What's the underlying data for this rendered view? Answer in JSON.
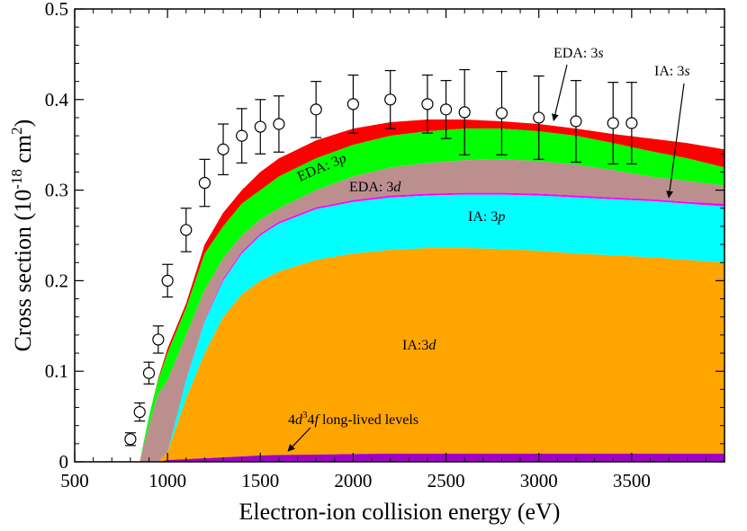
{
  "chart_data": {
    "type": "area",
    "xlabel": "Electron-ion collision energy (eV)",
    "ylabel": {
      "prefix": "Cross section (10",
      "exp": "-18",
      "mid": " cm",
      "exp2": "2",
      "suffix": ")"
    },
    "xlim": [
      500,
      4000
    ],
    "ylim": [
      0,
      0.5
    ],
    "x_ticks": [
      "500",
      "1000",
      "1500",
      "2000",
      "2500",
      "3000",
      "3500"
    ],
    "y_ticks": [
      "0",
      "0.1",
      "0.2",
      "0.3",
      "0.4",
      "0.5"
    ],
    "colors": {
      "long_lived": "#a000c8",
      "ia_3d": "#ffa500",
      "ia_3p": "#00ffff",
      "ia_3s": "#ff00ff",
      "eda_3d": "#bc8f8f",
      "eda_3p": "#00ff00",
      "eda_3s": "#ff0000"
    },
    "x": [
      850,
      900,
      950,
      1000,
      1100,
      1200,
      1300,
      1400,
      1500,
      1600,
      1800,
      2000,
      2200,
      2400,
      2600,
      2800,
      3000,
      3200,
      3400,
      3600,
      3800,
      4000
    ],
    "stack_tops": {
      "long_lived": [
        0,
        0,
        0,
        0.002,
        0.003,
        0.004,
        0.005,
        0.006,
        0.007,
        0.0075,
        0.008,
        0.0085,
        0.009,
        0.009,
        0.009,
        0.009,
        0.009,
        0.009,
        0.009,
        0.009,
        0.009,
        0.009
      ],
      "ia_3d": [
        0,
        0,
        0,
        0.01,
        0.07,
        0.12,
        0.16,
        0.185,
        0.2,
        0.21,
        0.223,
        0.23,
        0.234,
        0.236,
        0.236,
        0.235,
        0.233,
        0.23,
        0.228,
        0.226,
        0.223,
        0.22
      ],
      "ia_3p": [
        0,
        0,
        0,
        0.01,
        0.09,
        0.155,
        0.2,
        0.23,
        0.25,
        0.263,
        0.279,
        0.287,
        0.292,
        0.294,
        0.295,
        0.295,
        0.294,
        0.292,
        0.29,
        0.288,
        0.285,
        0.282
      ],
      "ia_3s": [
        0,
        0,
        0,
        0.01,
        0.09,
        0.156,
        0.202,
        0.232,
        0.252,
        0.265,
        0.281,
        0.289,
        0.294,
        0.296,
        0.297,
        0.297,
        0.296,
        0.294,
        0.292,
        0.29,
        0.287,
        0.285
      ],
      "eda_3d": [
        0,
        0.04,
        0.075,
        0.09,
        0.14,
        0.19,
        0.225,
        0.25,
        0.268,
        0.28,
        0.3,
        0.315,
        0.325,
        0.33,
        0.333,
        0.334,
        0.332,
        0.328,
        0.322,
        0.315,
        0.31,
        0.305
      ],
      "eda_3p": [
        0,
        0.05,
        0.09,
        0.12,
        0.17,
        0.23,
        0.26,
        0.285,
        0.3,
        0.315,
        0.335,
        0.35,
        0.36,
        0.365,
        0.368,
        0.368,
        0.365,
        0.36,
        0.352,
        0.343,
        0.335,
        0.325
      ],
      "eda_3s": [
        0,
        0.05,
        0.092,
        0.125,
        0.175,
        0.24,
        0.275,
        0.3,
        0.32,
        0.335,
        0.355,
        0.368,
        0.375,
        0.378,
        0.378,
        0.376,
        0.373,
        0.368,
        0.362,
        0.357,
        0.352,
        0.345
      ]
    },
    "measurements": {
      "x": [
        800,
        850,
        900,
        950,
        1000,
        1100,
        1200,
        1300,
        1400,
        1500,
        1600,
        1800,
        2000,
        2200,
        2400,
        2500,
        2600,
        2800,
        3000,
        3200,
        3400,
        3500
      ],
      "y": [
        0.025,
        0.055,
        0.098,
        0.135,
        0.2,
        0.256,
        0.308,
        0.345,
        0.36,
        0.37,
        0.373,
        0.389,
        0.395,
        0.4,
        0.395,
        0.389,
        0.386,
        0.385,
        0.38,
        0.376,
        0.374,
        0.374
      ],
      "err": [
        0.007,
        0.01,
        0.012,
        0.015,
        0.018,
        0.024,
        0.026,
        0.028,
        0.03,
        0.03,
        0.031,
        0.031,
        0.032,
        0.032,
        0.032,
        0.032,
        0.047,
        0.046,
        0.046,
        0.045,
        0.045,
        0.045
      ]
    },
    "annotations": {
      "eda_3s": {
        "prefix": "EDA: 3",
        "italic": "s"
      },
      "ia_3s": {
        "prefix": "IA: 3",
        "italic": "s"
      },
      "eda_3p": {
        "prefix": "EDA: 3",
        "italic": "p"
      },
      "eda_3d": {
        "prefix": "EDA: 3",
        "italic": "d"
      },
      "ia_3p": {
        "prefix": "IA: 3",
        "italic": "p"
      },
      "ia_3d": {
        "prefix": "IA:3",
        "italic": "d"
      },
      "long_lived": {
        "pre": "4",
        "italic1": "d",
        "sup": "3",
        "mid": "4",
        "italic2": "f",
        "suffix": " long-lived levels"
      }
    }
  }
}
